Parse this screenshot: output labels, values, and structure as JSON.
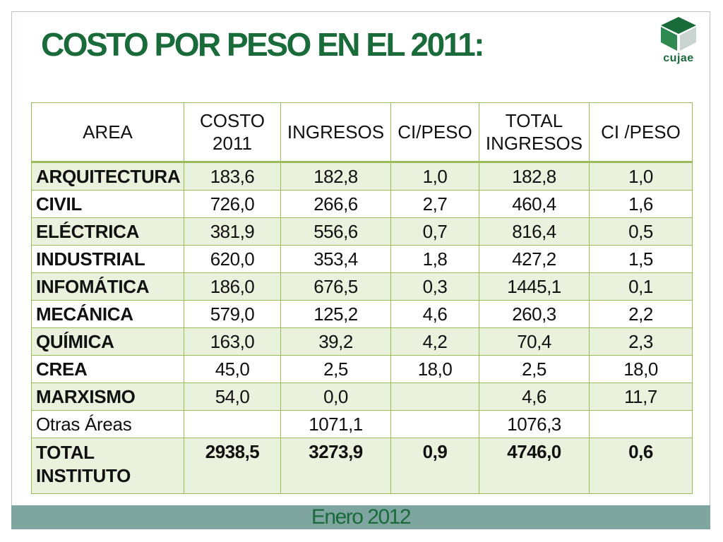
{
  "title": "COSTO POR PESO EN EL 2011:",
  "logo": {
    "text": "cujae",
    "icon": "cube-icon",
    "color": "#1a6b3a"
  },
  "table": {
    "headers": [
      [
        "AREA"
      ],
      [
        "COSTO",
        "2011"
      ],
      [
        "INGRESOS"
      ],
      [
        "CI/PESO"
      ],
      [
        "TOTAL",
        "INGRESOS"
      ],
      [
        "CI /PESO"
      ]
    ],
    "rows": [
      [
        "ARQUITECTURA",
        "183,6",
        "182,8",
        "1,0",
        "182,8",
        "1,0"
      ],
      [
        "CIVIL",
        "726,0",
        "266,6",
        "2,7",
        "460,4",
        "1,6"
      ],
      [
        "ELÉCTRICA",
        "381,9",
        "556,6",
        "0,7",
        "816,4",
        "0,5"
      ],
      [
        "INDUSTRIAL",
        "620,0",
        "353,4",
        "1,8",
        "427,2",
        "1,5"
      ],
      [
        "INFOMÁTICA",
        "186,0",
        "676,5",
        "0,3",
        "1445,1",
        "0,1"
      ],
      [
        "MECÁNICA",
        "579,0",
        "125,2",
        "4,6",
        "260,3",
        "2,2"
      ],
      [
        "QUÍMICA",
        "163,0",
        "39,2",
        "4,2",
        "70,4",
        "2,3"
      ],
      [
        "CREA",
        "45,0",
        "2,5",
        "18,0",
        "2,5",
        "18,0"
      ],
      [
        "MARXISMO",
        "54,0",
        "0,0",
        "",
        "4,6",
        "11,7"
      ],
      [
        "Otras Áreas",
        "",
        "1071,1",
        "",
        "1076,3",
        ""
      ]
    ],
    "total": {
      "label": [
        "TOTAL",
        "INSTITUTO"
      ],
      "values": [
        "2938,5",
        "3273,9",
        "0,9",
        "4746,0",
        "0,6"
      ]
    }
  },
  "footer": "Enero 2012",
  "colors": {
    "title": "#1a6b3a",
    "grid": "#9bbb59",
    "row_shade": "#eaf1dd",
    "footer_bar": "#7fa5a0"
  }
}
